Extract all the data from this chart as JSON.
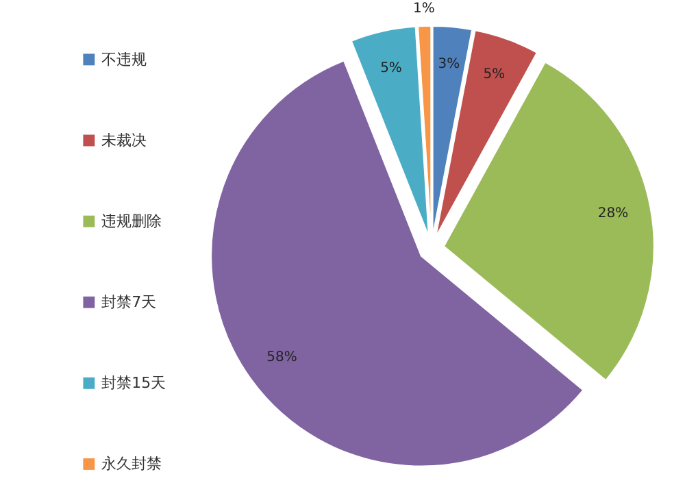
{
  "chart_data": {
    "type": "pie",
    "categories": [
      "不违规",
      "未裁决",
      "违规删除",
      "封禁7天",
      "封禁15天",
      "永久封禁"
    ],
    "values": [
      3,
      5,
      28,
      58,
      5,
      1
    ],
    "colors": [
      "#4f81bd",
      "#c0504d",
      "#9bbb59",
      "#8064a2",
      "#4bacc6",
      "#f79646"
    ],
    "value_labels": [
      "3%",
      "5%",
      "28%",
      "58%",
      "5%",
      "1%"
    ],
    "legend": "left"
  }
}
